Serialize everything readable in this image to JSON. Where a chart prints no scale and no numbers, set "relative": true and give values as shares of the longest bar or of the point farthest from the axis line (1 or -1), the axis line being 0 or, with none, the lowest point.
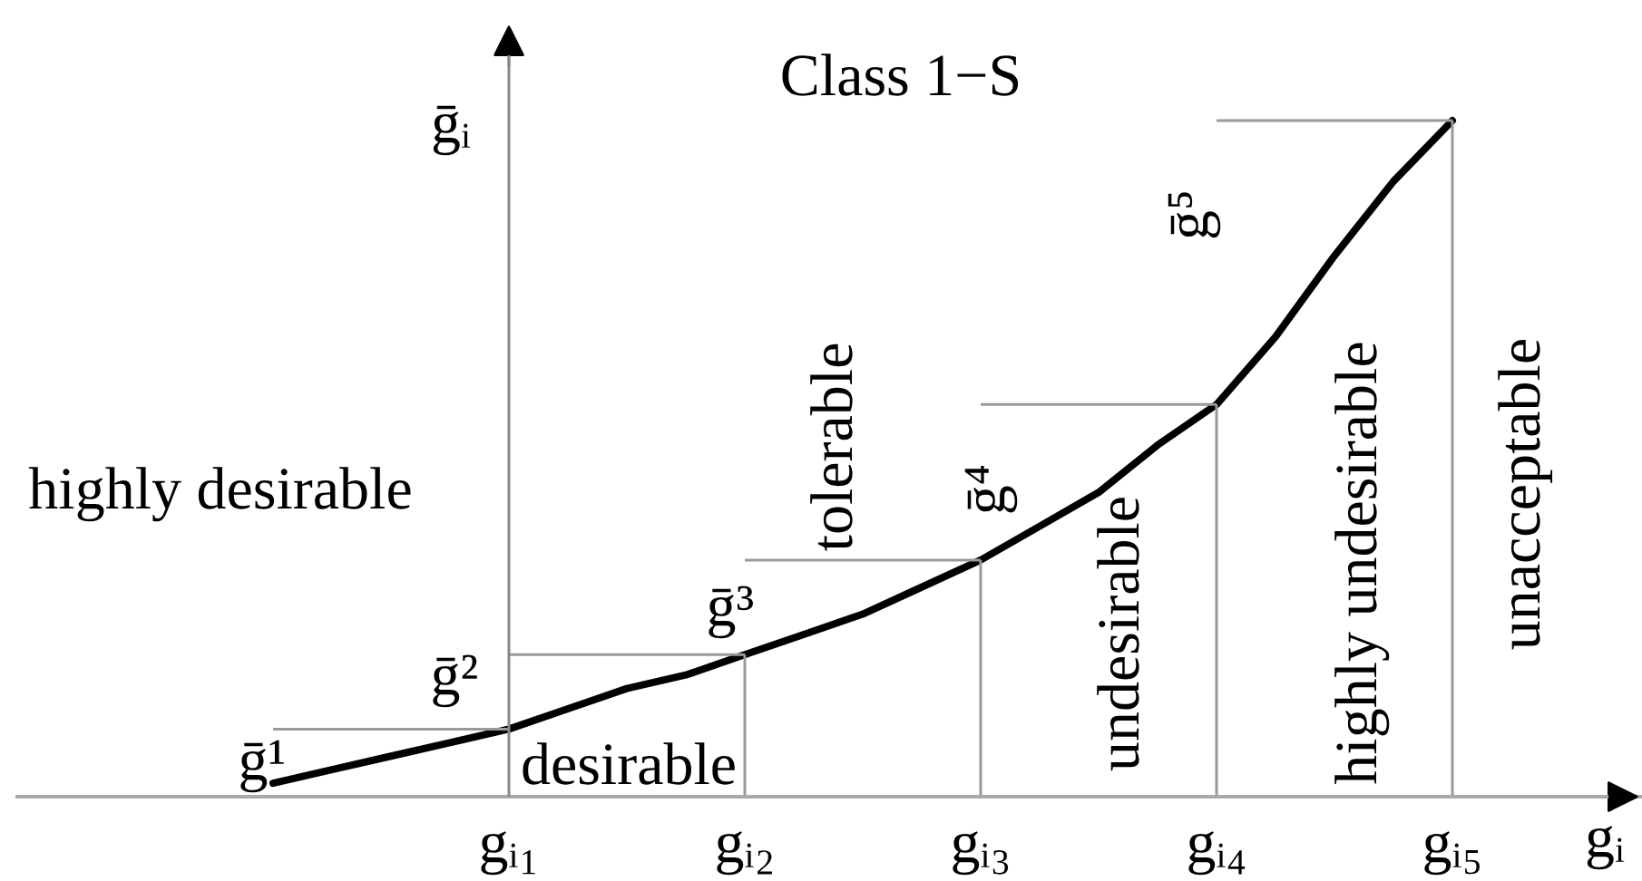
{
  "chart_data": {
    "type": "line",
    "relative": true,
    "title": "Class 1−S",
    "xlabel": "gᵢ",
    "ylabel": "ḡᵢ",
    "categories": [
      null,
      null,
      null,
      null,
      "gᵢ₁",
      null,
      null,
      null,
      "gᵢ₂",
      null,
      null,
      null,
      "gᵢ₃",
      null,
      null,
      null,
      "gᵢ₄",
      null,
      null,
      null,
      "gᵢ₅"
    ],
    "values": [
      0.02,
      0.04,
      0.06,
      0.08,
      0.1,
      0.13,
      0.16,
      0.18,
      0.21,
      0.24,
      0.27,
      0.31,
      0.35,
      0.4,
      0.45,
      0.52,
      0.58,
      0.68,
      0.8,
      0.91,
      1
    ],
    "color": "#000000",
    "annotations": [
      {
        "text": "ḡ¹",
        "x": "gᵢ₁",
        "y": 0.1
      },
      {
        "text": "ḡ²",
        "x": "gᵢ₂",
        "y": 0.21
      },
      {
        "text": "ḡ³",
        "x": "gᵢ₃",
        "y": 0.35
      },
      {
        "text": "ḡ⁴",
        "x": "gᵢ₄",
        "y": 0.58
      },
      {
        "text": "ḡ⁵",
        "x": "gᵢ₅",
        "y": 1
      },
      "highly desirable",
      "desirable",
      "tolerable",
      "undesirable",
      "highly undesirable",
      "unacceptable"
    ]
  }
}
